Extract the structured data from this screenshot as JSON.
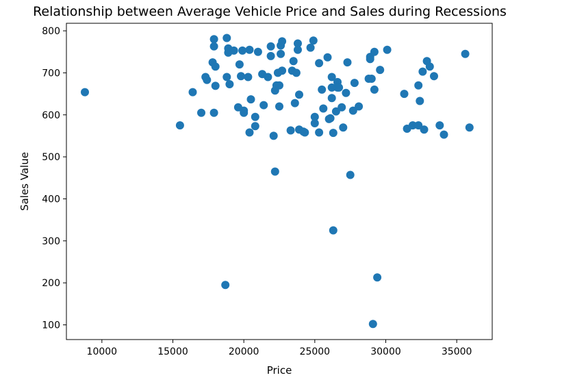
{
  "chart_data": {
    "type": "scatter",
    "title": "Relationship between Average Vehicle Price and Sales during Recessions",
    "xlabel": "Price",
    "ylabel": "Sales Value",
    "xlim": [
      7500,
      37500
    ],
    "ylim": [
      65,
      818
    ],
    "xticks": [
      10000,
      15000,
      20000,
      25000,
      30000,
      35000
    ],
    "yticks": [
      100,
      200,
      300,
      400,
      500,
      600,
      700,
      800
    ],
    "grid": false,
    "marker_color": "#1f77b4",
    "points": [
      [
        8800,
        654
      ],
      [
        15500,
        575
      ],
      [
        16400,
        654
      ],
      [
        17000,
        605
      ],
      [
        17300,
        690
      ],
      [
        17400,
        683
      ],
      [
        17800,
        725
      ],
      [
        17900,
        763
      ],
      [
        17900,
        605
      ],
      [
        17900,
        780
      ],
      [
        18000,
        669
      ],
      [
        18000,
        715
      ],
      [
        18700,
        195
      ],
      [
        18800,
        690
      ],
      [
        18800,
        783
      ],
      [
        18900,
        758
      ],
      [
        18900,
        748
      ],
      [
        19000,
        673
      ],
      [
        19300,
        753
      ],
      [
        19600,
        618
      ],
      [
        19700,
        720
      ],
      [
        19800,
        692
      ],
      [
        19900,
        753
      ],
      [
        20000,
        610
      ],
      [
        20000,
        605
      ],
      [
        20300,
        690
      ],
      [
        20400,
        558
      ],
      [
        20400,
        755
      ],
      [
        20500,
        637
      ],
      [
        20800,
        573
      ],
      [
        20800,
        595
      ],
      [
        21000,
        750
      ],
      [
        21300,
        697
      ],
      [
        21400,
        623
      ],
      [
        21700,
        690
      ],
      [
        21900,
        763
      ],
      [
        21900,
        740
      ],
      [
        22100,
        550
      ],
      [
        22200,
        658
      ],
      [
        22200,
        465
      ],
      [
        22300,
        670
      ],
      [
        22400,
        700
      ],
      [
        22500,
        620
      ],
      [
        22500,
        670
      ],
      [
        22600,
        765
      ],
      [
        22600,
        745
      ],
      [
        22700,
        775
      ],
      [
        22700,
        705
      ],
      [
        23300,
        563
      ],
      [
        23400,
        705
      ],
      [
        23500,
        728
      ],
      [
        23600,
        628
      ],
      [
        23700,
        700
      ],
      [
        23800,
        770
      ],
      [
        23800,
        755
      ],
      [
        23900,
        565
      ],
      [
        23900,
        648
      ],
      [
        24200,
        560
      ],
      [
        24300,
        558
      ],
      [
        24700,
        760
      ],
      [
        24900,
        777
      ],
      [
        25000,
        580
      ],
      [
        25000,
        595
      ],
      [
        25300,
        558
      ],
      [
        25300,
        723
      ],
      [
        25500,
        660
      ],
      [
        25600,
        615
      ],
      [
        25900,
        737
      ],
      [
        26000,
        590
      ],
      [
        26100,
        592
      ],
      [
        26200,
        665
      ],
      [
        26200,
        690
      ],
      [
        26200,
        640
      ],
      [
        26300,
        325
      ],
      [
        26300,
        557
      ],
      [
        26500,
        608
      ],
      [
        26600,
        678
      ],
      [
        26600,
        665
      ],
      [
        26700,
        665
      ],
      [
        26900,
        618
      ],
      [
        27000,
        570
      ],
      [
        27200,
        652
      ],
      [
        27300,
        725
      ],
      [
        27500,
        457
      ],
      [
        27700,
        610
      ],
      [
        27800,
        676
      ],
      [
        28100,
        620
      ],
      [
        28800,
        686
      ],
      [
        28900,
        733
      ],
      [
        28900,
        738
      ],
      [
        29000,
        686
      ],
      [
        29100,
        102
      ],
      [
        29200,
        750
      ],
      [
        29200,
        660
      ],
      [
        29400,
        213
      ],
      [
        29600,
        707
      ],
      [
        30100,
        755
      ],
      [
        31300,
        650
      ],
      [
        31500,
        567
      ],
      [
        31900,
        575
      ],
      [
        32300,
        575
      ],
      [
        32300,
        670
      ],
      [
        32400,
        633
      ],
      [
        32600,
        703
      ],
      [
        32700,
        565
      ],
      [
        32900,
        728
      ],
      [
        33100,
        715
      ],
      [
        33400,
        692
      ],
      [
        33800,
        575
      ],
      [
        34100,
        553
      ],
      [
        35600,
        745
      ],
      [
        35900,
        570
      ]
    ]
  }
}
